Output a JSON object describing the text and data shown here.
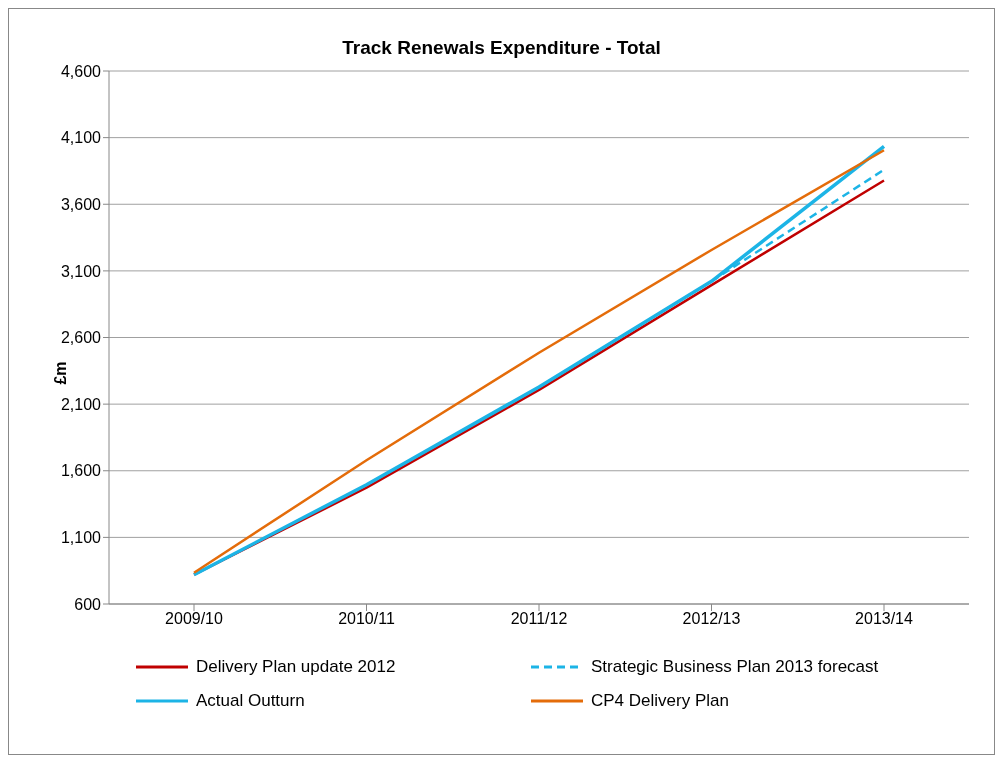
{
  "chart_data": {
    "type": "line",
    "title": "Track Renewals Expenditure - Total",
    "ylabel": "£m",
    "categories": [
      "2009/10",
      "2010/11",
      "2011/12",
      "2012/13",
      "2013/14"
    ],
    "series": [
      {
        "name": "Delivery Plan update 2012",
        "color": "#c00000",
        "values": [
          820,
          1473,
          2207,
          2993,
          3778
        ]
      },
      {
        "name": "Strategic Business Plan 2013 forecast",
        "color": "#1cb4e6",
        "line_style": "dashed",
        "values": [
          null,
          null,
          null,
          3022,
          3859
        ]
      },
      {
        "name": "Actual Outturn",
        "color": "#1cb4e6",
        "values": [
          820,
          1495,
          2229,
          3022,
          4035
        ]
      },
      {
        "name": "CP4 Delivery Plan",
        "color": "#e46c0a",
        "values": [
          835,
          1679,
          2486,
          3257,
          4005
        ]
      }
    ],
    "ylim": [
      600,
      4600
    ],
    "yticks": [
      600,
      {
        "value": 1100,
        "label": "1,100"
      },
      {
        "value": 1600,
        "label": "1,600"
      },
      {
        "value": 2100,
        "label": "2,100"
      },
      {
        "value": 2600,
        "label": "2,600"
      },
      {
        "value": 3100,
        "label": "3,100"
      },
      {
        "value": 3600,
        "label": "3,600"
      },
      {
        "value": 4100,
        "label": "4,100"
      },
      {
        "value": 4600,
        "label": "4,600"
      }
    ],
    "grid": "y",
    "legend": "bottom",
    "marker": "none",
    "line_style": "solid"
  }
}
